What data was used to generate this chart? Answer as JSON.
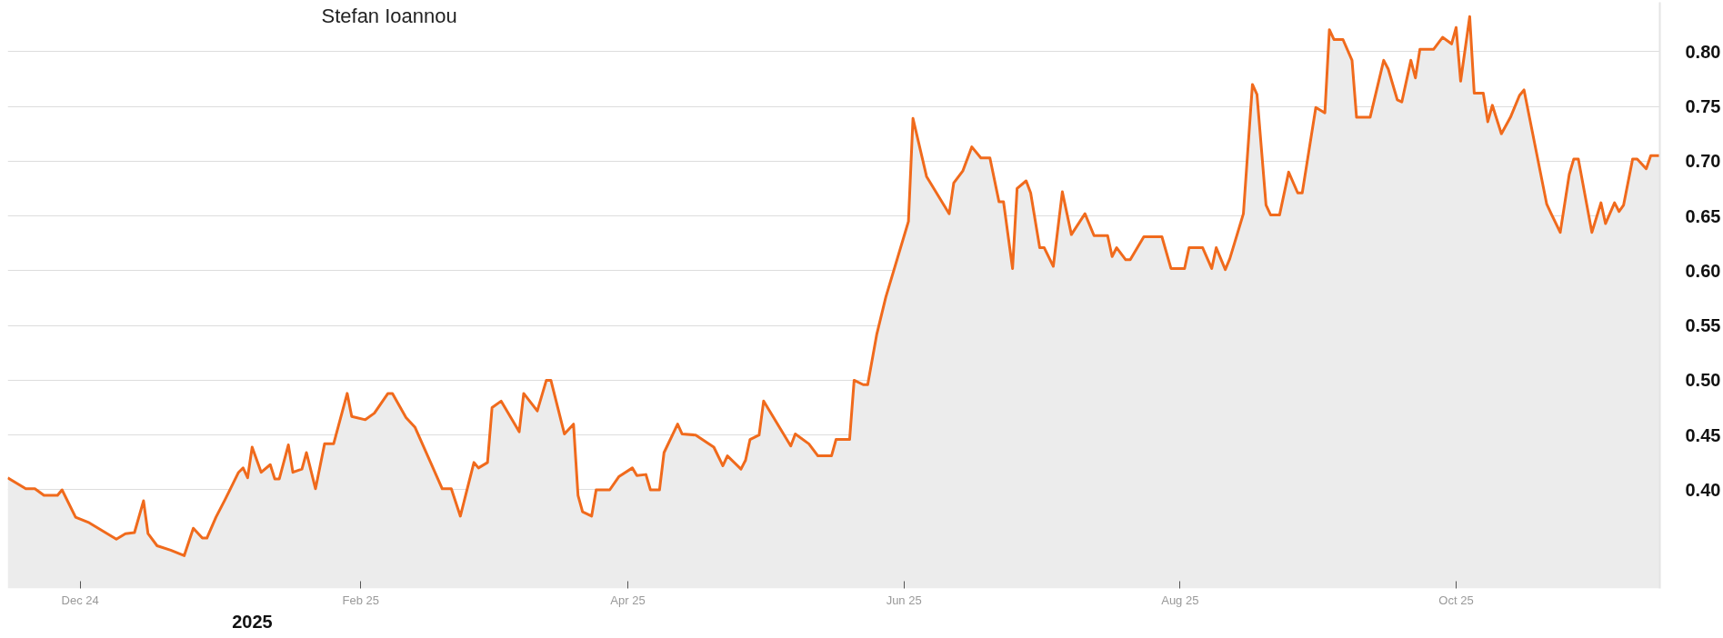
{
  "chart_data": {
    "type": "area",
    "x": [
      "2024-11-15",
      "2024-11-19",
      "2024-11-21",
      "2024-11-23",
      "2024-11-26",
      "2024-11-27",
      "2024-11-30",
      "2024-12-03",
      "2024-12-07",
      "2024-12-09",
      "2024-12-11",
      "2024-12-13",
      "2024-12-15",
      "2024-12-16",
      "2024-12-18",
      "2024-12-21",
      "2024-12-24",
      "2024-12-26",
      "2024-12-28",
      "2024-12-29",
      "2024-12-31",
      "2025-01-02",
      "2025-01-05",
      "2025-01-06",
      "2025-01-07",
      "2025-01-08",
      "2025-01-10",
      "2025-01-12",
      "2025-01-13",
      "2025-01-14",
      "2025-01-16",
      "2025-01-17",
      "2025-01-19",
      "2025-01-20",
      "2025-01-22",
      "2025-01-24",
      "2025-01-26",
      "2025-01-29",
      "2025-01-30",
      "2025-02-02",
      "2025-02-04",
      "2025-02-05",
      "2025-02-07",
      "2025-02-08",
      "2025-02-11",
      "2025-02-13",
      "2025-02-19",
      "2025-02-21",
      "2025-02-23",
      "2025-02-26",
      "2025-02-27",
      "2025-03-01",
      "2025-03-02",
      "2025-03-04",
      "2025-03-08",
      "2025-03-09",
      "2025-03-12",
      "2025-03-14",
      "2025-03-15",
      "2025-03-18",
      "2025-03-20",
      "2025-03-21",
      "2025-03-22",
      "2025-03-24",
      "2025-03-25",
      "2025-03-28",
      "2025-03-30",
      "2025-04-02",
      "2025-04-03",
      "2025-04-05",
      "2025-04-06",
      "2025-04-08",
      "2025-04-09",
      "2025-04-12",
      "2025-04-13",
      "2025-04-16",
      "2025-04-20",
      "2025-04-22",
      "2025-04-23",
      "2025-04-26",
      "2025-04-27",
      "2025-04-28",
      "2025-04-30",
      "2025-05-01",
      "2025-05-07",
      "2025-05-08",
      "2025-05-11",
      "2025-05-13",
      "2025-05-16",
      "2025-05-17",
      "2025-05-20",
      "2025-05-21",
      "2025-05-23",
      "2025-05-24",
      "2025-05-26",
      "2025-05-28",
      "2025-06-02",
      "2025-06-03",
      "2025-06-06",
      "2025-06-11",
      "2025-06-12",
      "2025-06-14",
      "2025-06-16",
      "2025-06-18",
      "2025-06-20",
      "2025-06-22",
      "2025-06-23",
      "2025-06-25",
      "2025-06-26",
      "2025-06-28",
      "2025-06-29",
      "2025-07-01",
      "2025-07-02",
      "2025-07-04",
      "2025-07-06",
      "2025-07-08",
      "2025-07-11",
      "2025-07-13",
      "2025-07-16",
      "2025-07-17",
      "2025-07-18",
      "2025-07-20",
      "2025-07-21",
      "2025-07-24",
      "2025-07-28",
      "2025-07-30",
      "2025-08-02",
      "2025-08-03",
      "2025-08-06",
      "2025-08-08",
      "2025-08-09",
      "2025-08-11",
      "2025-08-12",
      "2025-08-15",
      "2025-08-17",
      "2025-08-18",
      "2025-08-20",
      "2025-08-21",
      "2025-08-23",
      "2025-08-25",
      "2025-08-27",
      "2025-08-28",
      "2025-08-31",
      "2025-09-02",
      "2025-09-03",
      "2025-09-04",
      "2025-09-06",
      "2025-09-08",
      "2025-09-09",
      "2025-09-12",
      "2025-09-15",
      "2025-09-16",
      "2025-09-18",
      "2025-09-19",
      "2025-09-21",
      "2025-09-22",
      "2025-09-23",
      "2025-09-26",
      "2025-09-28",
      "2025-09-30",
      "2025-10-01",
      "2025-10-02",
      "2025-10-04",
      "2025-10-05",
      "2025-10-07",
      "2025-10-08",
      "2025-10-09",
      "2025-10-11",
      "2025-10-13",
      "2025-10-15",
      "2025-10-16",
      "2025-10-21",
      "2025-10-22",
      "2025-10-24",
      "2025-10-26",
      "2025-10-27",
      "2025-10-28",
      "2025-10-31",
      "2025-11-02",
      "2025-11-03",
      "2025-11-05",
      "2025-11-06",
      "2025-11-07",
      "2025-11-09",
      "2025-11-10",
      "2025-11-12",
      "2025-11-13",
      "2025-11-15"
    ],
    "series": [
      {
        "color": "#f06a1c",
        "values": [
          0.411,
          0.401,
          0.401,
          0.395,
          0.395,
          0.4,
          0.375,
          0.37,
          0.36,
          0.355,
          0.36,
          0.361,
          0.39,
          0.36,
          0.349,
          0.345,
          0.34,
          0.365,
          0.356,
          0.356,
          0.375,
          0.391,
          0.416,
          0.42,
          0.411,
          0.439,
          0.416,
          0.423,
          0.41,
          0.41,
          0.441,
          0.416,
          0.419,
          0.434,
          0.401,
          0.442,
          0.442,
          0.488,
          0.467,
          0.464,
          0.47,
          0.476,
          0.488,
          0.488,
          0.466,
          0.457,
          0.401,
          0.401,
          0.376,
          0.425,
          0.42,
          0.425,
          0.475,
          0.481,
          0.453,
          0.488,
          0.472,
          0.5,
          0.5,
          0.451,
          0.46,
          0.395,
          0.38,
          0.376,
          0.4,
          0.4,
          0.412,
          0.42,
          0.413,
          0.414,
          0.4,
          0.4,
          0.434,
          0.46,
          0.451,
          0.45,
          0.439,
          0.422,
          0.431,
          0.419,
          0.427,
          0.446,
          0.45,
          0.481,
          0.44,
          0.451,
          0.442,
          0.431,
          0.431,
          0.446,
          0.446,
          0.5,
          0.496,
          0.496,
          0.542,
          0.576,
          0.645,
          0.739,
          0.686,
          0.652,
          0.68,
          0.691,
          0.713,
          0.703,
          0.703,
          0.663,
          0.663,
          0.602,
          0.675,
          0.682,
          0.671,
          0.621,
          0.621,
          0.604,
          0.672,
          0.633,
          0.652,
          0.632,
          0.632,
          0.613,
          0.621,
          0.61,
          0.61,
          0.631,
          0.631,
          0.602,
          0.602,
          0.621,
          0.621,
          0.602,
          0.621,
          0.601,
          0.611,
          0.652,
          0.77,
          0.761,
          0.66,
          0.651,
          0.651,
          0.69,
          0.671,
          0.671,
          0.749,
          0.744,
          0.82,
          0.811,
          0.811,
          0.792,
          0.74,
          0.74,
          0.792,
          0.784,
          0.756,
          0.754,
          0.792,
          0.776,
          0.802,
          0.802,
          0.813,
          0.807,
          0.822,
          0.773,
          0.832,
          0.762,
          0.762,
          0.736,
          0.751,
          0.725,
          0.74,
          0.76,
          0.765,
          0.661,
          0.652,
          0.635,
          0.688,
          0.702,
          0.702,
          0.635,
          0.662,
          0.643,
          0.662,
          0.654,
          0.66,
          0.702,
          0.702,
          0.693,
          0.705,
          0.705
        ]
      }
    ],
    "xlim": [
      "2024-11-15",
      "2025-11-15"
    ],
    "ylim": [
      0.31,
      0.845
    ],
    "xticks": [
      {
        "value": "2024-12-01",
        "label": "Dec 24"
      },
      {
        "value": "2025-02-01",
        "label": "Feb 25"
      },
      {
        "value": "2025-04-01",
        "label": "Apr 25"
      },
      {
        "value": "2025-06-01",
        "label": "Jun 25"
      },
      {
        "value": "2025-08-01",
        "label": "Aug 25"
      },
      {
        "value": "2025-10-01",
        "label": "Oct 25"
      }
    ],
    "yticks": [
      {
        "value": 0.4,
        "label": "0.40"
      },
      {
        "value": 0.45,
        "label": "0.45"
      },
      {
        "value": 0.5,
        "label": "0.50"
      },
      {
        "value": 0.55,
        "label": "0.55"
      },
      {
        "value": 0.6,
        "label": "0.60"
      },
      {
        "value": 0.65,
        "label": "0.65"
      },
      {
        "value": 0.7,
        "label": "0.70"
      },
      {
        "value": 0.75,
        "label": "0.75"
      },
      {
        "value": 0.8,
        "label": "0.80"
      }
    ],
    "grid": "y",
    "annotations": [
      "Stefan Ioannou",
      "2025"
    ]
  }
}
